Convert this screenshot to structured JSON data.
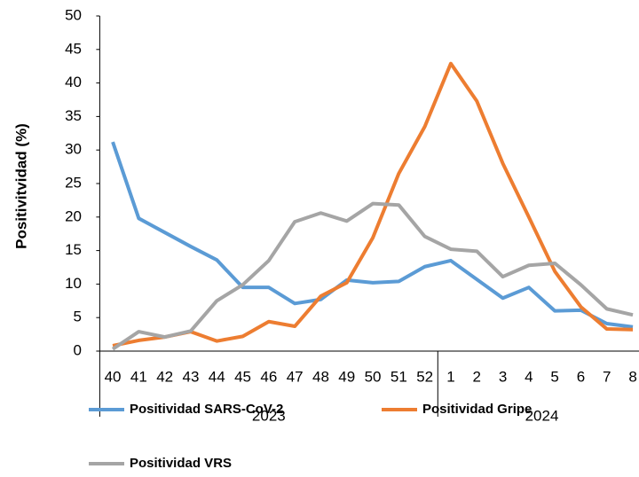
{
  "chart_data": {
    "type": "line",
    "y_label": "Positivitvidad (%)",
    "category_groups": [
      {
        "name": "2023",
        "categories": [
          "40",
          "41",
          "42",
          "43",
          "44",
          "45",
          "46",
          "47",
          "48",
          "49",
          "50",
          "51",
          "52"
        ]
      },
      {
        "name": "2024",
        "categories": [
          "1",
          "2",
          "3",
          "4",
          "5",
          "6",
          "7",
          "8"
        ]
      }
    ],
    "series": [
      {
        "name": "Positividad SARS-CoV-2",
        "color": "#5b9bd5",
        "values": [
          31.2,
          19.8,
          17.7,
          15.6,
          13.6,
          9.5,
          9.5,
          7.1,
          7.7,
          10.6,
          10.2,
          10.4,
          12.6,
          13.5,
          10.7,
          7.9,
          9.5,
          6.0,
          6.1,
          4.1,
          3.6
        ]
      },
      {
        "name": "Positividad Gripe",
        "color": "#ed7d31",
        "values": [
          0.8,
          1.6,
          2.1,
          2.9,
          1.5,
          2.2,
          4.4,
          3.7,
          8.2,
          10.2,
          16.9,
          26.5,
          33.5,
          42.9,
          37.3,
          28.0,
          20.0,
          11.9,
          6.6,
          3.3,
          3.2
        ]
      },
      {
        "name": "Positividad VRS",
        "color": "#a5a5a5",
        "values": [
          0.3,
          2.9,
          2.1,
          3.0,
          7.5,
          9.9,
          13.5,
          19.3,
          20.6,
          19.4,
          22.0,
          21.8,
          17.1,
          15.2,
          14.9,
          11.1,
          12.8,
          13.1,
          9.9,
          6.3,
          5.4
        ]
      }
    ],
    "ylim": [
      0,
      50
    ],
    "yticks": [
      0,
      5,
      10,
      15,
      20,
      25,
      30,
      35,
      40,
      45,
      50
    ]
  }
}
